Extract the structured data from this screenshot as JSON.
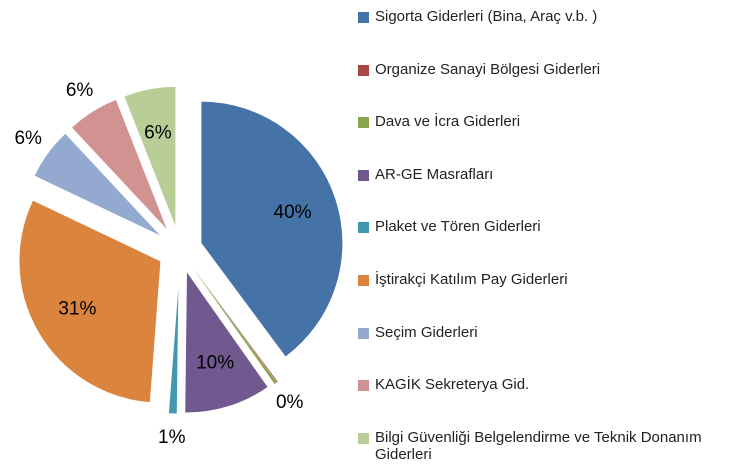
{
  "chart_data": {
    "type": "pie",
    "categories": [
      "Sigorta Giderleri (Bina, Araç v.b. )",
      "Organize Sanayi Bölgesi Giderleri",
      "Dava ve İcra Giderleri",
      "AR-GE Masrafları",
      "Plaket ve Tören Giderleri",
      "İştirakçi Katılım Pay Giderleri",
      "Seçim Giderleri",
      "KAGİK Sekreterya Gid.",
      "Bilgi Güvenliği Belgelendirme ve Teknik Donanım Giderleri"
    ],
    "values": [
      40,
      0.1,
      0.3,
      10,
      1,
      31,
      6,
      6,
      6
    ],
    "value_labels": [
      "40%",
      null,
      "0%",
      "10%",
      "1%",
      "31%",
      "6%",
      "6%",
      "6%"
    ],
    "colors": [
      "#4572a7",
      "#aa4643",
      "#89a54e",
      "#71588f",
      "#4198af",
      "#db843d",
      "#93a9cf",
      "#d19392",
      "#b9cd96"
    ],
    "legend": "right"
  }
}
